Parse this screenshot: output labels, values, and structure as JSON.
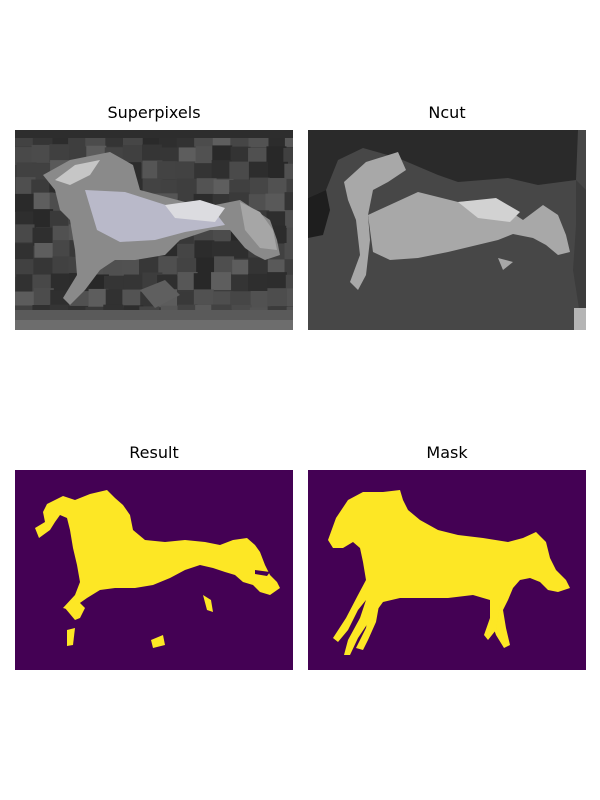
{
  "panels": [
    {
      "title": "Superpixels"
    },
    {
      "title": "Ncut"
    },
    {
      "title": "Result"
    },
    {
      "title": "Mask"
    }
  ],
  "colors": {
    "viridis_dark": "#440154",
    "viridis_yellow": "#fde725",
    "ncut_dark": "#2a2a2a",
    "ncut_mid": "#474747",
    "ncut_light": "#a8a8a8"
  }
}
